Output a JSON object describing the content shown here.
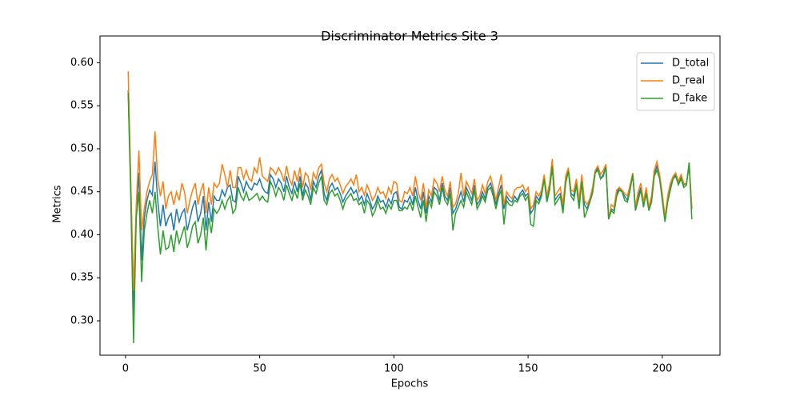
{
  "chart_data": {
    "type": "line",
    "title": "Discriminator Metrics Site 3",
    "x_label": "Epochs",
    "y_label": "Metrics",
    "x": [
      1,
      2,
      3,
      4,
      5,
      6,
      7,
      8,
      9,
      10,
      11,
      12,
      13,
      14,
      15,
      16,
      17,
      18,
      19,
      20,
      21,
      22,
      23,
      24,
      25,
      26,
      27,
      28,
      29,
      30,
      31,
      32,
      33,
      34,
      35,
      36,
      37,
      38,
      39,
      40,
      41,
      42,
      43,
      44,
      45,
      46,
      47,
      48,
      49,
      50,
      51,
      52,
      53,
      54,
      55,
      56,
      57,
      58,
      59,
      60,
      61,
      62,
      63,
      64,
      65,
      66,
      67,
      68,
      69,
      70,
      71,
      72,
      73,
      74,
      75,
      76,
      77,
      78,
      79,
      80,
      81,
      82,
      83,
      84,
      85,
      86,
      87,
      88,
      89,
      90,
      91,
      92,
      93,
      94,
      95,
      96,
      97,
      98,
      99,
      100,
      101,
      102,
      103,
      104,
      105,
      106,
      107,
      108,
      109,
      110,
      111,
      112,
      113,
      114,
      115,
      116,
      117,
      118,
      119,
      120,
      121,
      122,
      123,
      124,
      125,
      126,
      127,
      128,
      129,
      130,
      131,
      132,
      133,
      134,
      135,
      136,
      137,
      138,
      139,
      140,
      141,
      142,
      143,
      144,
      145,
      146,
      147,
      148,
      149,
      150,
      151,
      152,
      153,
      154,
      155,
      156,
      157,
      158,
      159,
      160,
      161,
      162,
      163,
      164,
      165,
      166,
      167,
      168,
      169,
      170,
      171,
      172,
      173,
      174,
      175,
      176,
      177,
      178,
      179,
      180,
      181,
      182,
      183,
      184,
      185,
      186,
      187,
      188,
      189,
      190,
      191,
      192,
      193,
      194,
      195,
      196,
      197,
      198,
      199,
      200,
      201,
      202,
      203,
      204,
      205,
      206,
      207,
      208,
      209,
      210,
      211
    ],
    "series": [
      {
        "name": "D_total",
        "color": "#1f77b4",
        "values": [
          0.568,
          0.45,
          0.305,
          0.425,
          0.472,
          0.37,
          0.42,
          0.44,
          0.452,
          0.446,
          0.485,
          0.44,
          0.41,
          0.435,
          0.41,
          0.42,
          0.425,
          0.405,
          0.43,
          0.415,
          0.425,
          0.43,
          0.405,
          0.418,
          0.432,
          0.44,
          0.415,
          0.425,
          0.445,
          0.405,
          0.438,
          0.415,
          0.445,
          0.44,
          0.44,
          0.452,
          0.445,
          0.455,
          0.458,
          0.44,
          0.438,
          0.468,
          0.46,
          0.45,
          0.462,
          0.455,
          0.452,
          0.46,
          0.458,
          0.465,
          0.455,
          0.45,
          0.448,
          0.47,
          0.465,
          0.455,
          0.465,
          0.46,
          0.45,
          0.468,
          0.455,
          0.448,
          0.462,
          0.45,
          0.468,
          0.445,
          0.46,
          0.455,
          0.44,
          0.462,
          0.455,
          0.468,
          0.475,
          0.448,
          0.44,
          0.455,
          0.46,
          0.452,
          0.455,
          0.448,
          0.438,
          0.445,
          0.45,
          0.455,
          0.448,
          0.452,
          0.44,
          0.445,
          0.435,
          0.448,
          0.44,
          0.43,
          0.435,
          0.445,
          0.438,
          0.44,
          0.432,
          0.442,
          0.436,
          0.448,
          0.45,
          0.432,
          0.43,
          0.44,
          0.438,
          0.445,
          0.435,
          0.455,
          0.44,
          0.43,
          0.45,
          0.425,
          0.445,
          0.438,
          0.455,
          0.452,
          0.44,
          0.46,
          0.445,
          0.44,
          0.455,
          0.425,
          0.43,
          0.44,
          0.45,
          0.438,
          0.455,
          0.448,
          0.44,
          0.458,
          0.435,
          0.44,
          0.45,
          0.442,
          0.455,
          0.46,
          0.45,
          0.435,
          0.448,
          0.458,
          0.43,
          0.445,
          0.44,
          0.438,
          0.445,
          0.44,
          0.448,
          0.452,
          0.445,
          0.448,
          0.425,
          0.43,
          0.445,
          0.44,
          0.448,
          0.465,
          0.44,
          0.455,
          0.478,
          0.44,
          0.445,
          0.448,
          0.43,
          0.462,
          0.475,
          0.448,
          0.445,
          0.46,
          0.435,
          0.465,
          0.435,
          0.43,
          0.44,
          0.45,
          0.472,
          0.478,
          0.465,
          0.47,
          0.48,
          0.42,
          0.43,
          0.428,
          0.448,
          0.455,
          0.45,
          0.445,
          0.44,
          0.455,
          0.47,
          0.43,
          0.445,
          0.455,
          0.435,
          0.45,
          0.43,
          0.44,
          0.47,
          0.48,
          0.468,
          0.445,
          0.42,
          0.44,
          0.455,
          0.465,
          0.47,
          0.46,
          0.468,
          0.458,
          0.46,
          0.48,
          0.43
        ]
      },
      {
        "name": "D_real",
        "color": "#ff7f0e",
        "values": [
          0.59,
          0.46,
          0.335,
          0.435,
          0.498,
          0.405,
          0.43,
          0.45,
          0.462,
          0.47,
          0.52,
          0.465,
          0.445,
          0.462,
          0.43,
          0.445,
          0.45,
          0.435,
          0.45,
          0.44,
          0.46,
          0.45,
          0.425,
          0.44,
          0.452,
          0.46,
          0.435,
          0.45,
          0.46,
          0.425,
          0.455,
          0.435,
          0.46,
          0.455,
          0.46,
          0.482,
          0.47,
          0.455,
          0.475,
          0.455,
          0.455,
          0.478,
          0.478,
          0.465,
          0.475,
          0.465,
          0.462,
          0.478,
          0.472,
          0.49,
          0.468,
          0.465,
          0.462,
          0.478,
          0.475,
          0.47,
          0.478,
          0.472,
          0.462,
          0.48,
          0.465,
          0.458,
          0.475,
          0.462,
          0.478,
          0.455,
          0.472,
          0.468,
          0.452,
          0.472,
          0.465,
          0.478,
          0.482,
          0.46,
          0.45,
          0.465,
          0.47,
          0.462,
          0.466,
          0.458,
          0.448,
          0.456,
          0.46,
          0.465,
          0.458,
          0.47,
          0.45,
          0.455,
          0.446,
          0.458,
          0.45,
          0.44,
          0.445,
          0.455,
          0.448,
          0.45,
          0.442,
          0.455,
          0.448,
          0.462,
          0.46,
          0.44,
          0.438,
          0.45,
          0.448,
          0.455,
          0.445,
          0.468,
          0.45,
          0.44,
          0.46,
          0.432,
          0.452,
          0.445,
          0.465,
          0.46,
          0.45,
          0.468,
          0.452,
          0.445,
          0.462,
          0.432,
          0.436,
          0.448,
          0.472,
          0.445,
          0.462,
          0.455,
          0.448,
          0.465,
          0.44,
          0.445,
          0.458,
          0.448,
          0.462,
          0.468,
          0.455,
          0.44,
          0.455,
          0.47,
          0.435,
          0.45,
          0.445,
          0.442,
          0.452,
          0.455,
          0.455,
          0.458,
          0.45,
          0.455,
          0.43,
          0.435,
          0.45,
          0.445,
          0.452,
          0.47,
          0.445,
          0.46,
          0.488,
          0.445,
          0.45,
          0.455,
          0.435,
          0.468,
          0.478,
          0.452,
          0.45,
          0.465,
          0.44,
          0.47,
          0.44,
          0.435,
          0.442,
          0.455,
          0.475,
          0.48,
          0.47,
          0.475,
          0.482,
          0.418,
          0.435,
          0.432,
          0.452,
          0.455,
          0.452,
          0.448,
          0.445,
          0.458,
          0.472,
          0.432,
          0.45,
          0.46,
          0.438,
          0.455,
          0.432,
          0.445,
          0.475,
          0.485,
          0.47,
          0.448,
          0.42,
          0.445,
          0.46,
          0.468,
          0.472,
          0.462,
          0.47,
          0.46,
          0.458,
          0.484,
          0.432
        ]
      },
      {
        "name": "D_fake",
        "color": "#2ca02c",
        "values": [
          0.565,
          0.44,
          0.274,
          0.42,
          0.45,
          0.345,
          0.405,
          0.425,
          0.44,
          0.425,
          0.45,
          0.41,
          0.377,
          0.405,
          0.383,
          0.385,
          0.4,
          0.38,
          0.405,
          0.39,
          0.4,
          0.41,
          0.385,
          0.395,
          0.41,
          0.415,
          0.39,
          0.4,
          0.42,
          0.382,
          0.42,
          0.402,
          0.43,
          0.425,
          0.43,
          0.44,
          0.43,
          0.44,
          0.445,
          0.425,
          0.43,
          0.455,
          0.445,
          0.44,
          0.45,
          0.44,
          0.442,
          0.445,
          0.448,
          0.44,
          0.445,
          0.44,
          0.438,
          0.462,
          0.455,
          0.445,
          0.455,
          0.45,
          0.44,
          0.458,
          0.448,
          0.44,
          0.452,
          0.442,
          0.46,
          0.44,
          0.452,
          0.445,
          0.435,
          0.455,
          0.448,
          0.46,
          0.468,
          0.44,
          0.435,
          0.448,
          0.452,
          0.445,
          0.448,
          0.44,
          0.43,
          0.44,
          0.444,
          0.448,
          0.44,
          0.442,
          0.435,
          0.438,
          0.425,
          0.44,
          0.435,
          0.422,
          0.428,
          0.44,
          0.43,
          0.432,
          0.425,
          0.435,
          0.43,
          0.44,
          0.44,
          0.428,
          0.428,
          0.432,
          0.43,
          0.438,
          0.428,
          0.445,
          0.432,
          0.42,
          0.44,
          0.415,
          0.44,
          0.432,
          0.45,
          0.445,
          0.435,
          0.455,
          0.44,
          0.435,
          0.448,
          0.405,
          0.425,
          0.432,
          0.44,
          0.432,
          0.45,
          0.442,
          0.435,
          0.452,
          0.43,
          0.436,
          0.445,
          0.438,
          0.452,
          0.455,
          0.445,
          0.43,
          0.444,
          0.452,
          0.412,
          0.44,
          0.435,
          0.434,
          0.44,
          0.438,
          0.445,
          0.448,
          0.44,
          0.445,
          0.412,
          0.41,
          0.44,
          0.436,
          0.445,
          0.465,
          0.438,
          0.452,
          0.48,
          0.435,
          0.44,
          0.445,
          0.425,
          0.46,
          0.474,
          0.445,
          0.44,
          0.458,
          0.43,
          0.462,
          0.42,
          0.428,
          0.438,
          0.448,
          0.472,
          0.475,
          0.465,
          0.468,
          0.478,
          0.418,
          0.428,
          0.425,
          0.445,
          0.452,
          0.45,
          0.44,
          0.438,
          0.452,
          0.47,
          0.428,
          0.44,
          0.452,
          0.432,
          0.448,
          0.428,
          0.438,
          0.468,
          0.475,
          0.465,
          0.44,
          0.415,
          0.438,
          0.452,
          0.465,
          0.468,
          0.458,
          0.465,
          0.455,
          0.458,
          0.484,
          0.418
        ]
      }
    ],
    "xlim": [
      -9.5,
      221.5
    ],
    "xticks": [
      0,
      50,
      100,
      150,
      200
    ],
    "ylim": [
      0.26,
      0.619
    ],
    "yticks": [
      {
        "value": 0.3,
        "label": "0.30"
      },
      0.35,
      {
        "value": 0.4,
        "label": "0.40"
      },
      0.45,
      {
        "value": 0.5,
        "label": "0.50"
      },
      0.55,
      {
        "value": 0.6,
        "label": "0.60"
      }
    ],
    "grid": false,
    "legend": "upper right"
  }
}
